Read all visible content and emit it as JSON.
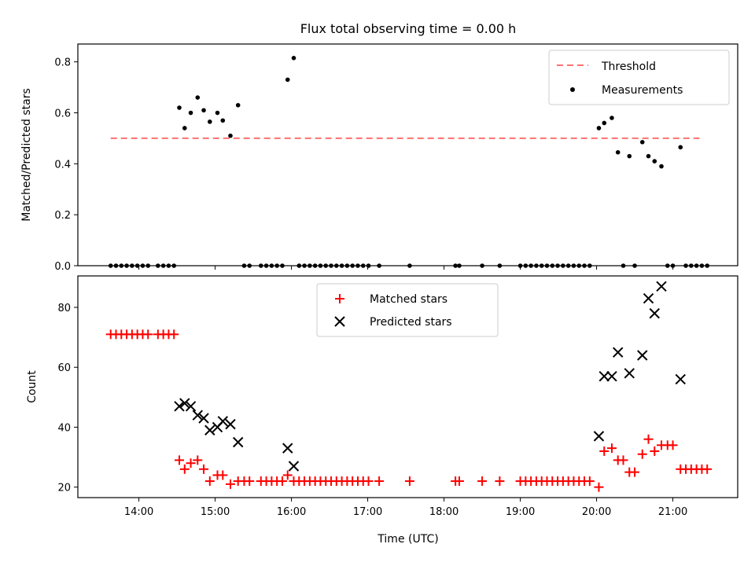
{
  "chart_data": [
    {
      "type": "scatter",
      "title": "Flux total observing time = 0.00 h",
      "xlabel": "",
      "ylabel": "Matched/Predicted stars",
      "xlim_hours": [
        13.2,
        21.85
      ],
      "ylim": [
        0,
        0.87
      ],
      "yticks": [
        "0.0",
        "0.2",
        "0.4",
        "0.6",
        "0.8"
      ],
      "legend": {
        "placement": "upper right",
        "entries": [
          "Threshold",
          "Measurements"
        ]
      },
      "threshold": {
        "name": "Threshold",
        "value": 0.5,
        "x_range": [
          13.63,
          21.35
        ],
        "color": "#ff7070"
      },
      "series": [
        {
          "name": "Measurements",
          "color": "#000000",
          "points": [
            [
              13.63,
              0
            ],
            [
              13.7,
              0
            ],
            [
              13.77,
              0
            ],
            [
              13.84,
              0
            ],
            [
              13.91,
              0
            ],
            [
              13.98,
              0
            ],
            [
              14.05,
              0
            ],
            [
              14.12,
              0
            ],
            [
              14.25,
              0
            ],
            [
              14.32,
              0
            ],
            [
              14.39,
              0
            ],
            [
              14.46,
              0
            ],
            [
              14.53,
              0.62
            ],
            [
              14.6,
              0.54
            ],
            [
              14.68,
              0.6
            ],
            [
              14.77,
              0.66
            ],
            [
              14.85,
              0.61
            ],
            [
              14.93,
              0.565
            ],
            [
              15.03,
              0.6
            ],
            [
              15.1,
              0.57
            ],
            [
              15.2,
              0.51
            ],
            [
              15.3,
              0.63
            ],
            [
              15.38,
              0
            ],
            [
              15.45,
              0
            ],
            [
              15.6,
              0
            ],
            [
              15.67,
              0
            ],
            [
              15.74,
              0
            ],
            [
              15.81,
              0
            ],
            [
              15.88,
              0
            ],
            [
              15.95,
              0.73
            ],
            [
              16.03,
              0.815
            ],
            [
              16.1,
              0
            ],
            [
              16.17,
              0
            ],
            [
              16.24,
              0
            ],
            [
              16.31,
              0
            ],
            [
              16.38,
              0
            ],
            [
              16.45,
              0
            ],
            [
              16.52,
              0
            ],
            [
              16.59,
              0
            ],
            [
              16.66,
              0
            ],
            [
              16.73,
              0
            ],
            [
              16.8,
              0
            ],
            [
              16.87,
              0
            ],
            [
              16.94,
              0
            ],
            [
              17.01,
              0
            ],
            [
              17.15,
              0
            ],
            [
              17.55,
              0
            ],
            [
              18.15,
              0
            ],
            [
              18.2,
              0
            ],
            [
              18.5,
              0
            ],
            [
              18.73,
              0
            ],
            [
              19.0,
              0
            ],
            [
              19.07,
              0
            ],
            [
              19.14,
              0
            ],
            [
              19.21,
              0
            ],
            [
              19.28,
              0
            ],
            [
              19.35,
              0
            ],
            [
              19.42,
              0
            ],
            [
              19.49,
              0
            ],
            [
              19.56,
              0
            ],
            [
              19.63,
              0
            ],
            [
              19.7,
              0
            ],
            [
              19.77,
              0
            ],
            [
              19.84,
              0
            ],
            [
              19.91,
              0
            ],
            [
              20.03,
              0.54
            ],
            [
              20.1,
              0.56
            ],
            [
              20.2,
              0.58
            ],
            [
              20.28,
              0.445
            ],
            [
              20.35,
              0
            ],
            [
              20.43,
              0.43
            ],
            [
              20.5,
              0
            ],
            [
              20.6,
              0.485
            ],
            [
              20.68,
              0.43
            ],
            [
              20.76,
              0.41
            ],
            [
              20.85,
              0.39
            ],
            [
              20.93,
              0
            ],
            [
              21.0,
              0
            ],
            [
              21.1,
              0.465
            ],
            [
              21.17,
              0
            ],
            [
              21.24,
              0
            ],
            [
              21.31,
              0
            ],
            [
              21.38,
              0
            ],
            [
              21.45,
              0
            ]
          ]
        }
      ]
    },
    {
      "type": "scatter",
      "title": "",
      "xlabel": "Time (UTC)",
      "ylabel": "Count",
      "xlim_hours": [
        13.2,
        21.85
      ],
      "ylim": [
        16.5,
        90.5
      ],
      "xticks": [
        {
          "hour": 14,
          "label": "14:00"
        },
        {
          "hour": 15,
          "label": "15:00"
        },
        {
          "hour": 16,
          "label": "16:00"
        },
        {
          "hour": 17,
          "label": "17:00"
        },
        {
          "hour": 18,
          "label": "18:00"
        },
        {
          "hour": 19,
          "label": "19:00"
        },
        {
          "hour": 20,
          "label": "20:00"
        },
        {
          "hour": 21,
          "label": "21:00"
        }
      ],
      "yticks": [
        "20",
        "40",
        "60",
        "80"
      ],
      "legend": {
        "placement": "upper center",
        "entries": [
          "Matched stars",
          "Predicted stars"
        ]
      },
      "series": [
        {
          "name": "Matched stars",
          "marker": "plus",
          "color": "#ff0000",
          "points": [
            [
              13.63,
              71
            ],
            [
              13.7,
              71
            ],
            [
              13.77,
              71
            ],
            [
              13.84,
              71
            ],
            [
              13.91,
              71
            ],
            [
              13.98,
              71
            ],
            [
              14.05,
              71
            ],
            [
              14.12,
              71
            ],
            [
              14.25,
              71
            ],
            [
              14.32,
              71
            ],
            [
              14.39,
              71
            ],
            [
              14.46,
              71
            ],
            [
              14.53,
              29
            ],
            [
              14.6,
              26
            ],
            [
              14.68,
              28
            ],
            [
              14.77,
              29
            ],
            [
              14.85,
              26
            ],
            [
              14.93,
              22
            ],
            [
              15.03,
              24
            ],
            [
              15.1,
              24
            ],
            [
              15.2,
              21
            ],
            [
              15.3,
              22
            ],
            [
              15.38,
              22
            ],
            [
              15.45,
              22
            ],
            [
              15.6,
              22
            ],
            [
              15.67,
              22
            ],
            [
              15.74,
              22
            ],
            [
              15.81,
              22
            ],
            [
              15.88,
              22
            ],
            [
              15.95,
              24
            ],
            [
              16.03,
              22
            ],
            [
              16.1,
              22
            ],
            [
              16.17,
              22
            ],
            [
              16.24,
              22
            ],
            [
              16.31,
              22
            ],
            [
              16.38,
              22
            ],
            [
              16.45,
              22
            ],
            [
              16.52,
              22
            ],
            [
              16.59,
              22
            ],
            [
              16.66,
              22
            ],
            [
              16.73,
              22
            ],
            [
              16.8,
              22
            ],
            [
              16.87,
              22
            ],
            [
              16.94,
              22
            ],
            [
              17.01,
              22
            ],
            [
              17.15,
              22
            ],
            [
              17.55,
              22
            ],
            [
              18.15,
              22
            ],
            [
              18.2,
              22
            ],
            [
              18.5,
              22
            ],
            [
              18.73,
              22
            ],
            [
              19.0,
              22
            ],
            [
              19.07,
              22
            ],
            [
              19.14,
              22
            ],
            [
              19.21,
              22
            ],
            [
              19.28,
              22
            ],
            [
              19.35,
              22
            ],
            [
              19.42,
              22
            ],
            [
              19.49,
              22
            ],
            [
              19.56,
              22
            ],
            [
              19.63,
              22
            ],
            [
              19.7,
              22
            ],
            [
              19.77,
              22
            ],
            [
              19.84,
              22
            ],
            [
              19.91,
              22
            ],
            [
              20.03,
              20
            ],
            [
              20.1,
              32
            ],
            [
              20.2,
              33
            ],
            [
              20.28,
              29
            ],
            [
              20.35,
              29
            ],
            [
              20.43,
              25
            ],
            [
              20.5,
              25
            ],
            [
              20.6,
              31
            ],
            [
              20.68,
              36
            ],
            [
              20.76,
              32
            ],
            [
              20.85,
              34
            ],
            [
              20.93,
              34
            ],
            [
              21.0,
              34
            ],
            [
              21.1,
              26
            ],
            [
              21.17,
              26
            ],
            [
              21.24,
              26
            ],
            [
              21.31,
              26
            ],
            [
              21.38,
              26
            ],
            [
              21.45,
              26
            ]
          ]
        },
        {
          "name": "Predicted stars",
          "marker": "x",
          "color": "#000000",
          "points": [
            [
              14.53,
              47
            ],
            [
              14.6,
              48
            ],
            [
              14.68,
              47
            ],
            [
              14.77,
              44
            ],
            [
              14.85,
              43
            ],
            [
              14.93,
              39
            ],
            [
              15.03,
              40
            ],
            [
              15.1,
              42
            ],
            [
              15.2,
              41
            ],
            [
              15.3,
              35
            ],
            [
              15.95,
              33
            ],
            [
              16.03,
              27
            ],
            [
              20.03,
              37
            ],
            [
              20.1,
              57
            ],
            [
              20.2,
              57
            ],
            [
              20.28,
              65
            ],
            [
              20.43,
              58
            ],
            [
              20.6,
              64
            ],
            [
              20.68,
              83
            ],
            [
              20.76,
              78
            ],
            [
              20.85,
              87
            ],
            [
              21.1,
              56
            ]
          ]
        }
      ]
    }
  ]
}
